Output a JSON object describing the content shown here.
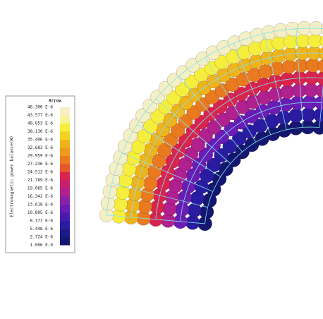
{
  "legend": {
    "title": "Arrow",
    "axis_label": "Electromagnetic power balance(W)",
    "labels": [
      "46.300 E-6",
      "43.577 E-6",
      "40.853 E-6",
      "38.130 E-6",
      "35.406 E-6",
      "32.683 E-6",
      "29.959 E-6",
      "27.236 E-6",
      "24.512 E-6",
      "21.789 E-6",
      "19.065 E-6",
      "16.342 E-6",
      "13.618 E-6",
      "10.895 E-6",
      "8.171 E-6",
      "5.448 E-6",
      "2.724 E-6",
      "1.000 E-9"
    ],
    "colors": [
      "#f4efc4",
      "#f8f39a",
      "#f6ee3c",
      "#f2d320",
      "#efb31c",
      "#ee9a1e",
      "#ea7a20",
      "#e5582a",
      "#d8244e",
      "#c8206e",
      "#b0208e",
      "#8a22a8",
      "#6a1cb4",
      "#4a1ab0",
      "#2a1ca0",
      "#1c1a88",
      "#141670"
    ]
  }
}
